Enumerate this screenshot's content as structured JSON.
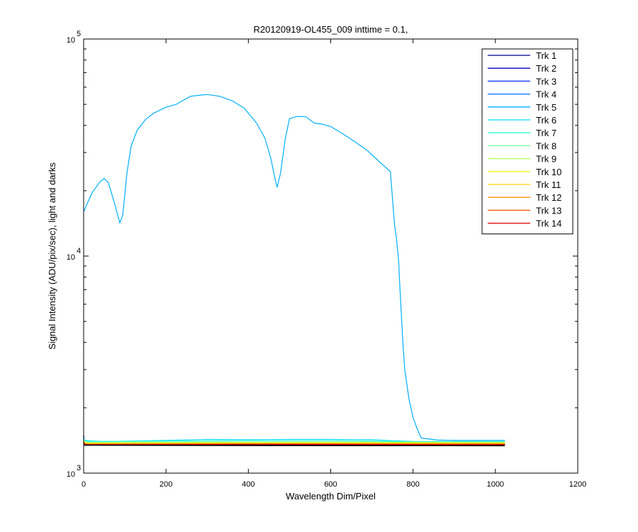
{
  "chart_data": {
    "type": "line",
    "title": "R20120919-OL455_009 inttime = 0.1,",
    "xlabel": "Wavelength Dim/Pixel",
    "ylabel": "Signal Intensity (ADU/pix/sec), light and darks",
    "xlim": [
      0,
      1200
    ],
    "ylim": [
      1000,
      100000
    ],
    "yscale": "log",
    "x_ticks": [
      0,
      200,
      400,
      600,
      800,
      1000,
      1200
    ],
    "x_tick_labels": [
      "0",
      "200",
      "400",
      "600",
      "800",
      "1000",
      "1200"
    ],
    "y_ticks": [
      {
        "value": 1000,
        "base": "10",
        "exp": "3"
      },
      {
        "value": 10000,
        "base": "10",
        "exp": "4"
      },
      {
        "value": 100000,
        "base": "10",
        "exp": "5"
      }
    ],
    "grid": false,
    "legend_position": "top-right",
    "series": [
      {
        "name": "Trk 1",
        "color": "#00008f",
        "x": [
          0,
          1,
          3,
          10,
          200,
          400,
          600,
          800,
          1023
        ],
        "y": [
          1500,
          1380,
          1370,
          1360,
          1365,
          1365,
          1365,
          1365,
          1365
        ]
      },
      {
        "name": "Trk 2",
        "color": "#0000bf",
        "x": [
          0,
          1,
          3,
          10,
          200,
          400,
          600,
          800,
          1023
        ],
        "y": [
          1480,
          1375,
          1360,
          1350,
          1352,
          1352,
          1352,
          1352,
          1352
        ]
      },
      {
        "name": "Trk 3",
        "color": "#0030ff",
        "x": [
          0,
          1,
          3,
          10,
          200,
          400,
          600,
          800,
          1023
        ],
        "y": [
          1470,
          1390,
          1375,
          1370,
          1372,
          1372,
          1372,
          1375,
          1375
        ]
      },
      {
        "name": "Trk 4",
        "color": "#0070ff",
        "x": [
          0,
          1,
          3,
          10,
          200,
          400,
          600,
          800,
          1023
        ],
        "y": [
          1460,
          1390,
          1380,
          1378,
          1380,
          1380,
          1380,
          1380,
          1380
        ]
      },
      {
        "name": "Trk 5",
        "color": "#00afff",
        "x": [
          0,
          20,
          40,
          50,
          60,
          75,
          88,
          95,
          105,
          115,
          130,
          150,
          170,
          200,
          225,
          240,
          260,
          280,
          300,
          330,
          360,
          390,
          420,
          440,
          455,
          465,
          470,
          478,
          490,
          500,
          520,
          540,
          560,
          580,
          600,
          630,
          660,
          690,
          720,
          745,
          755,
          760,
          765,
          768,
          772,
          776,
          780,
          790,
          800,
          810,
          820,
          860,
          900,
          960,
          1023
        ],
        "y": [
          16000,
          19500,
          22000,
          22800,
          21800,
          17500,
          14200,
          15500,
          24000,
          32000,
          38000,
          42500,
          45500,
          48500,
          50000,
          52000,
          54500,
          55000,
          55500,
          54500,
          52000,
          48000,
          41000,
          35000,
          28000,
          22500,
          20800,
          24000,
          35000,
          43000,
          44000,
          43800,
          41000,
          40500,
          39500,
          36500,
          33500,
          30500,
          27000,
          24500,
          14000,
          12000,
          9500,
          7200,
          5200,
          3800,
          3000,
          2200,
          1800,
          1600,
          1450,
          1420,
          1415,
          1415,
          1415
        ]
      },
      {
        "name": "Trk 6",
        "color": "#00dfff",
        "x": [
          0,
          3,
          10,
          50,
          200,
          300,
          400,
          500,
          600,
          700,
          750,
          800,
          850,
          1023
        ],
        "y": [
          1440,
          1420,
          1410,
          1400,
          1415,
          1430,
          1425,
          1430,
          1430,
          1425,
          1410,
          1400,
          1398,
          1398
        ]
      },
      {
        "name": "Trk 7",
        "color": "#30ffcf",
        "x": [
          0,
          3,
          10,
          200,
          400,
          600,
          700,
          800,
          1023
        ],
        "y": [
          1450,
          1410,
          1400,
          1405,
          1410,
          1410,
          1405,
          1395,
          1395
        ]
      },
      {
        "name": "Trk 8",
        "color": "#70ff8f",
        "x": [
          0,
          3,
          10,
          200,
          400,
          600,
          800,
          1023
        ],
        "y": [
          1430,
          1390,
          1385,
          1388,
          1390,
          1390,
          1388,
          1388
        ]
      },
      {
        "name": "Trk 9",
        "color": "#afff50",
        "x": [
          0,
          3,
          10,
          200,
          400,
          600,
          800,
          1023
        ],
        "y": [
          1420,
          1385,
          1380,
          1383,
          1385,
          1385,
          1383,
          1383
        ]
      },
      {
        "name": "Trk 10",
        "color": "#efff10",
        "x": [
          0,
          3,
          10,
          200,
          400,
          600,
          800,
          1023
        ],
        "y": [
          1410,
          1380,
          1376,
          1378,
          1380,
          1380,
          1378,
          1378
        ]
      },
      {
        "name": "Trk 11",
        "color": "#ffcf00",
        "x": [
          0,
          3,
          10,
          200,
          400,
          600,
          800,
          1023
        ],
        "y": [
          1400,
          1372,
          1368,
          1370,
          1372,
          1372,
          1370,
          1370
        ]
      },
      {
        "name": "Trk 12",
        "color": "#ff8f00",
        "x": [
          0,
          3,
          10,
          200,
          400,
          600,
          800,
          1023
        ],
        "y": [
          1395,
          1366,
          1362,
          1364,
          1366,
          1366,
          1364,
          1364
        ]
      },
      {
        "name": "Trk 13",
        "color": "#ff5000",
        "x": [
          0,
          3,
          10,
          200,
          400,
          600,
          800,
          1023
        ],
        "y": [
          1390,
          1360,
          1356,
          1358,
          1360,
          1360,
          1358,
          1358
        ]
      },
      {
        "name": "Trk 14",
        "color": "#df0000",
        "x": [
          0,
          3,
          10,
          200,
          400,
          600,
          800,
          1023
        ],
        "y": [
          1385,
          1355,
          1350,
          1352,
          1354,
          1354,
          1352,
          1352
        ]
      }
    ]
  }
}
